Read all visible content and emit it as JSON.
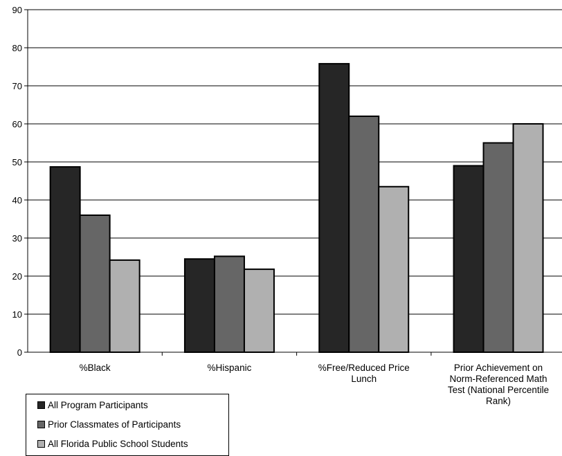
{
  "chart_data": {
    "type": "bar",
    "categories": [
      [
        "%Black"
      ],
      [
        "%Hispanic"
      ],
      [
        "%Free/Reduced Price",
        "Lunch"
      ],
      [
        "Prior Achievement on",
        "Norm-Referenced Math",
        "Test (National Percentile",
        "Rank)"
      ]
    ],
    "series": [
      {
        "name": "All Program Participants",
        "color": "#262626",
        "values": [
          48.7,
          24.5,
          75.8,
          49.0
        ]
      },
      {
        "name": "Prior Classmates of Participants",
        "color": "#666666",
        "values": [
          36.0,
          25.2,
          62.0,
          55.0
        ]
      },
      {
        "name": "All Florida Public School Students",
        "color": "#b0b0b0",
        "values": [
          24.2,
          21.8,
          43.5,
          60.0
        ]
      }
    ],
    "ylim": [
      0,
      90
    ],
    "yticks": [
      0,
      10,
      20,
      30,
      40,
      50,
      60,
      70,
      80,
      90
    ],
    "grid": true,
    "legend_position": "bottom-left"
  }
}
